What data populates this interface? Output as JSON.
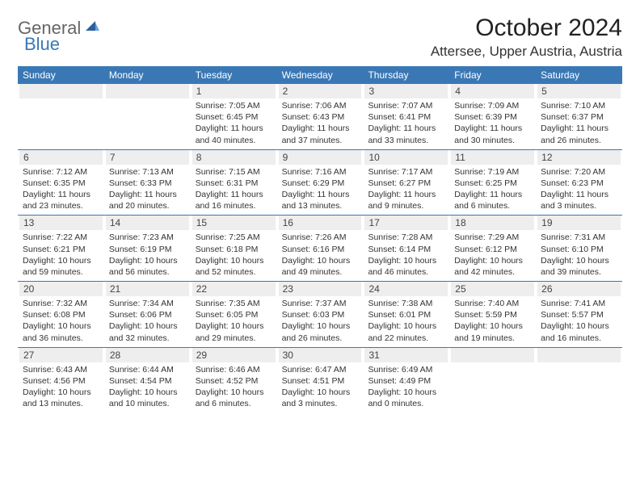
{
  "logo": {
    "text1": "General",
    "text2": "Blue"
  },
  "title": "October 2024",
  "location": "Attersee, Upper Austria, Austria",
  "colors": {
    "header_bg": "#3a78b5",
    "daynum_bg": "#eeeeee",
    "border": "#3a78b5",
    "text": "#333333",
    "logo_gray": "#666666",
    "logo_blue": "#3a78b5"
  },
  "weekdays": [
    "Sunday",
    "Monday",
    "Tuesday",
    "Wednesday",
    "Thursday",
    "Friday",
    "Saturday"
  ],
  "weeks": [
    [
      {
        "n": "",
        "sr": "",
        "ss": "",
        "dl": ""
      },
      {
        "n": "",
        "sr": "",
        "ss": "",
        "dl": ""
      },
      {
        "n": "1",
        "sr": "Sunrise: 7:05 AM",
        "ss": "Sunset: 6:45 PM",
        "dl": "Daylight: 11 hours and 40 minutes."
      },
      {
        "n": "2",
        "sr": "Sunrise: 7:06 AM",
        "ss": "Sunset: 6:43 PM",
        "dl": "Daylight: 11 hours and 37 minutes."
      },
      {
        "n": "3",
        "sr": "Sunrise: 7:07 AM",
        "ss": "Sunset: 6:41 PM",
        "dl": "Daylight: 11 hours and 33 minutes."
      },
      {
        "n": "4",
        "sr": "Sunrise: 7:09 AM",
        "ss": "Sunset: 6:39 PM",
        "dl": "Daylight: 11 hours and 30 minutes."
      },
      {
        "n": "5",
        "sr": "Sunrise: 7:10 AM",
        "ss": "Sunset: 6:37 PM",
        "dl": "Daylight: 11 hours and 26 minutes."
      }
    ],
    [
      {
        "n": "6",
        "sr": "Sunrise: 7:12 AM",
        "ss": "Sunset: 6:35 PM",
        "dl": "Daylight: 11 hours and 23 minutes."
      },
      {
        "n": "7",
        "sr": "Sunrise: 7:13 AM",
        "ss": "Sunset: 6:33 PM",
        "dl": "Daylight: 11 hours and 20 minutes."
      },
      {
        "n": "8",
        "sr": "Sunrise: 7:15 AM",
        "ss": "Sunset: 6:31 PM",
        "dl": "Daylight: 11 hours and 16 minutes."
      },
      {
        "n": "9",
        "sr": "Sunrise: 7:16 AM",
        "ss": "Sunset: 6:29 PM",
        "dl": "Daylight: 11 hours and 13 minutes."
      },
      {
        "n": "10",
        "sr": "Sunrise: 7:17 AM",
        "ss": "Sunset: 6:27 PM",
        "dl": "Daylight: 11 hours and 9 minutes."
      },
      {
        "n": "11",
        "sr": "Sunrise: 7:19 AM",
        "ss": "Sunset: 6:25 PM",
        "dl": "Daylight: 11 hours and 6 minutes."
      },
      {
        "n": "12",
        "sr": "Sunrise: 7:20 AM",
        "ss": "Sunset: 6:23 PM",
        "dl": "Daylight: 11 hours and 3 minutes."
      }
    ],
    [
      {
        "n": "13",
        "sr": "Sunrise: 7:22 AM",
        "ss": "Sunset: 6:21 PM",
        "dl": "Daylight: 10 hours and 59 minutes."
      },
      {
        "n": "14",
        "sr": "Sunrise: 7:23 AM",
        "ss": "Sunset: 6:19 PM",
        "dl": "Daylight: 10 hours and 56 minutes."
      },
      {
        "n": "15",
        "sr": "Sunrise: 7:25 AM",
        "ss": "Sunset: 6:18 PM",
        "dl": "Daylight: 10 hours and 52 minutes."
      },
      {
        "n": "16",
        "sr": "Sunrise: 7:26 AM",
        "ss": "Sunset: 6:16 PM",
        "dl": "Daylight: 10 hours and 49 minutes."
      },
      {
        "n": "17",
        "sr": "Sunrise: 7:28 AM",
        "ss": "Sunset: 6:14 PM",
        "dl": "Daylight: 10 hours and 46 minutes."
      },
      {
        "n": "18",
        "sr": "Sunrise: 7:29 AM",
        "ss": "Sunset: 6:12 PM",
        "dl": "Daylight: 10 hours and 42 minutes."
      },
      {
        "n": "19",
        "sr": "Sunrise: 7:31 AM",
        "ss": "Sunset: 6:10 PM",
        "dl": "Daylight: 10 hours and 39 minutes."
      }
    ],
    [
      {
        "n": "20",
        "sr": "Sunrise: 7:32 AM",
        "ss": "Sunset: 6:08 PM",
        "dl": "Daylight: 10 hours and 36 minutes."
      },
      {
        "n": "21",
        "sr": "Sunrise: 7:34 AM",
        "ss": "Sunset: 6:06 PM",
        "dl": "Daylight: 10 hours and 32 minutes."
      },
      {
        "n": "22",
        "sr": "Sunrise: 7:35 AM",
        "ss": "Sunset: 6:05 PM",
        "dl": "Daylight: 10 hours and 29 minutes."
      },
      {
        "n": "23",
        "sr": "Sunrise: 7:37 AM",
        "ss": "Sunset: 6:03 PM",
        "dl": "Daylight: 10 hours and 26 minutes."
      },
      {
        "n": "24",
        "sr": "Sunrise: 7:38 AM",
        "ss": "Sunset: 6:01 PM",
        "dl": "Daylight: 10 hours and 22 minutes."
      },
      {
        "n": "25",
        "sr": "Sunrise: 7:40 AM",
        "ss": "Sunset: 5:59 PM",
        "dl": "Daylight: 10 hours and 19 minutes."
      },
      {
        "n": "26",
        "sr": "Sunrise: 7:41 AM",
        "ss": "Sunset: 5:57 PM",
        "dl": "Daylight: 10 hours and 16 minutes."
      }
    ],
    [
      {
        "n": "27",
        "sr": "Sunrise: 6:43 AM",
        "ss": "Sunset: 4:56 PM",
        "dl": "Daylight: 10 hours and 13 minutes."
      },
      {
        "n": "28",
        "sr": "Sunrise: 6:44 AM",
        "ss": "Sunset: 4:54 PM",
        "dl": "Daylight: 10 hours and 10 minutes."
      },
      {
        "n": "29",
        "sr": "Sunrise: 6:46 AM",
        "ss": "Sunset: 4:52 PM",
        "dl": "Daylight: 10 hours and 6 minutes."
      },
      {
        "n": "30",
        "sr": "Sunrise: 6:47 AM",
        "ss": "Sunset: 4:51 PM",
        "dl": "Daylight: 10 hours and 3 minutes."
      },
      {
        "n": "31",
        "sr": "Sunrise: 6:49 AM",
        "ss": "Sunset: 4:49 PM",
        "dl": "Daylight: 10 hours and 0 minutes."
      },
      {
        "n": "",
        "sr": "",
        "ss": "",
        "dl": ""
      },
      {
        "n": "",
        "sr": "",
        "ss": "",
        "dl": ""
      }
    ]
  ]
}
